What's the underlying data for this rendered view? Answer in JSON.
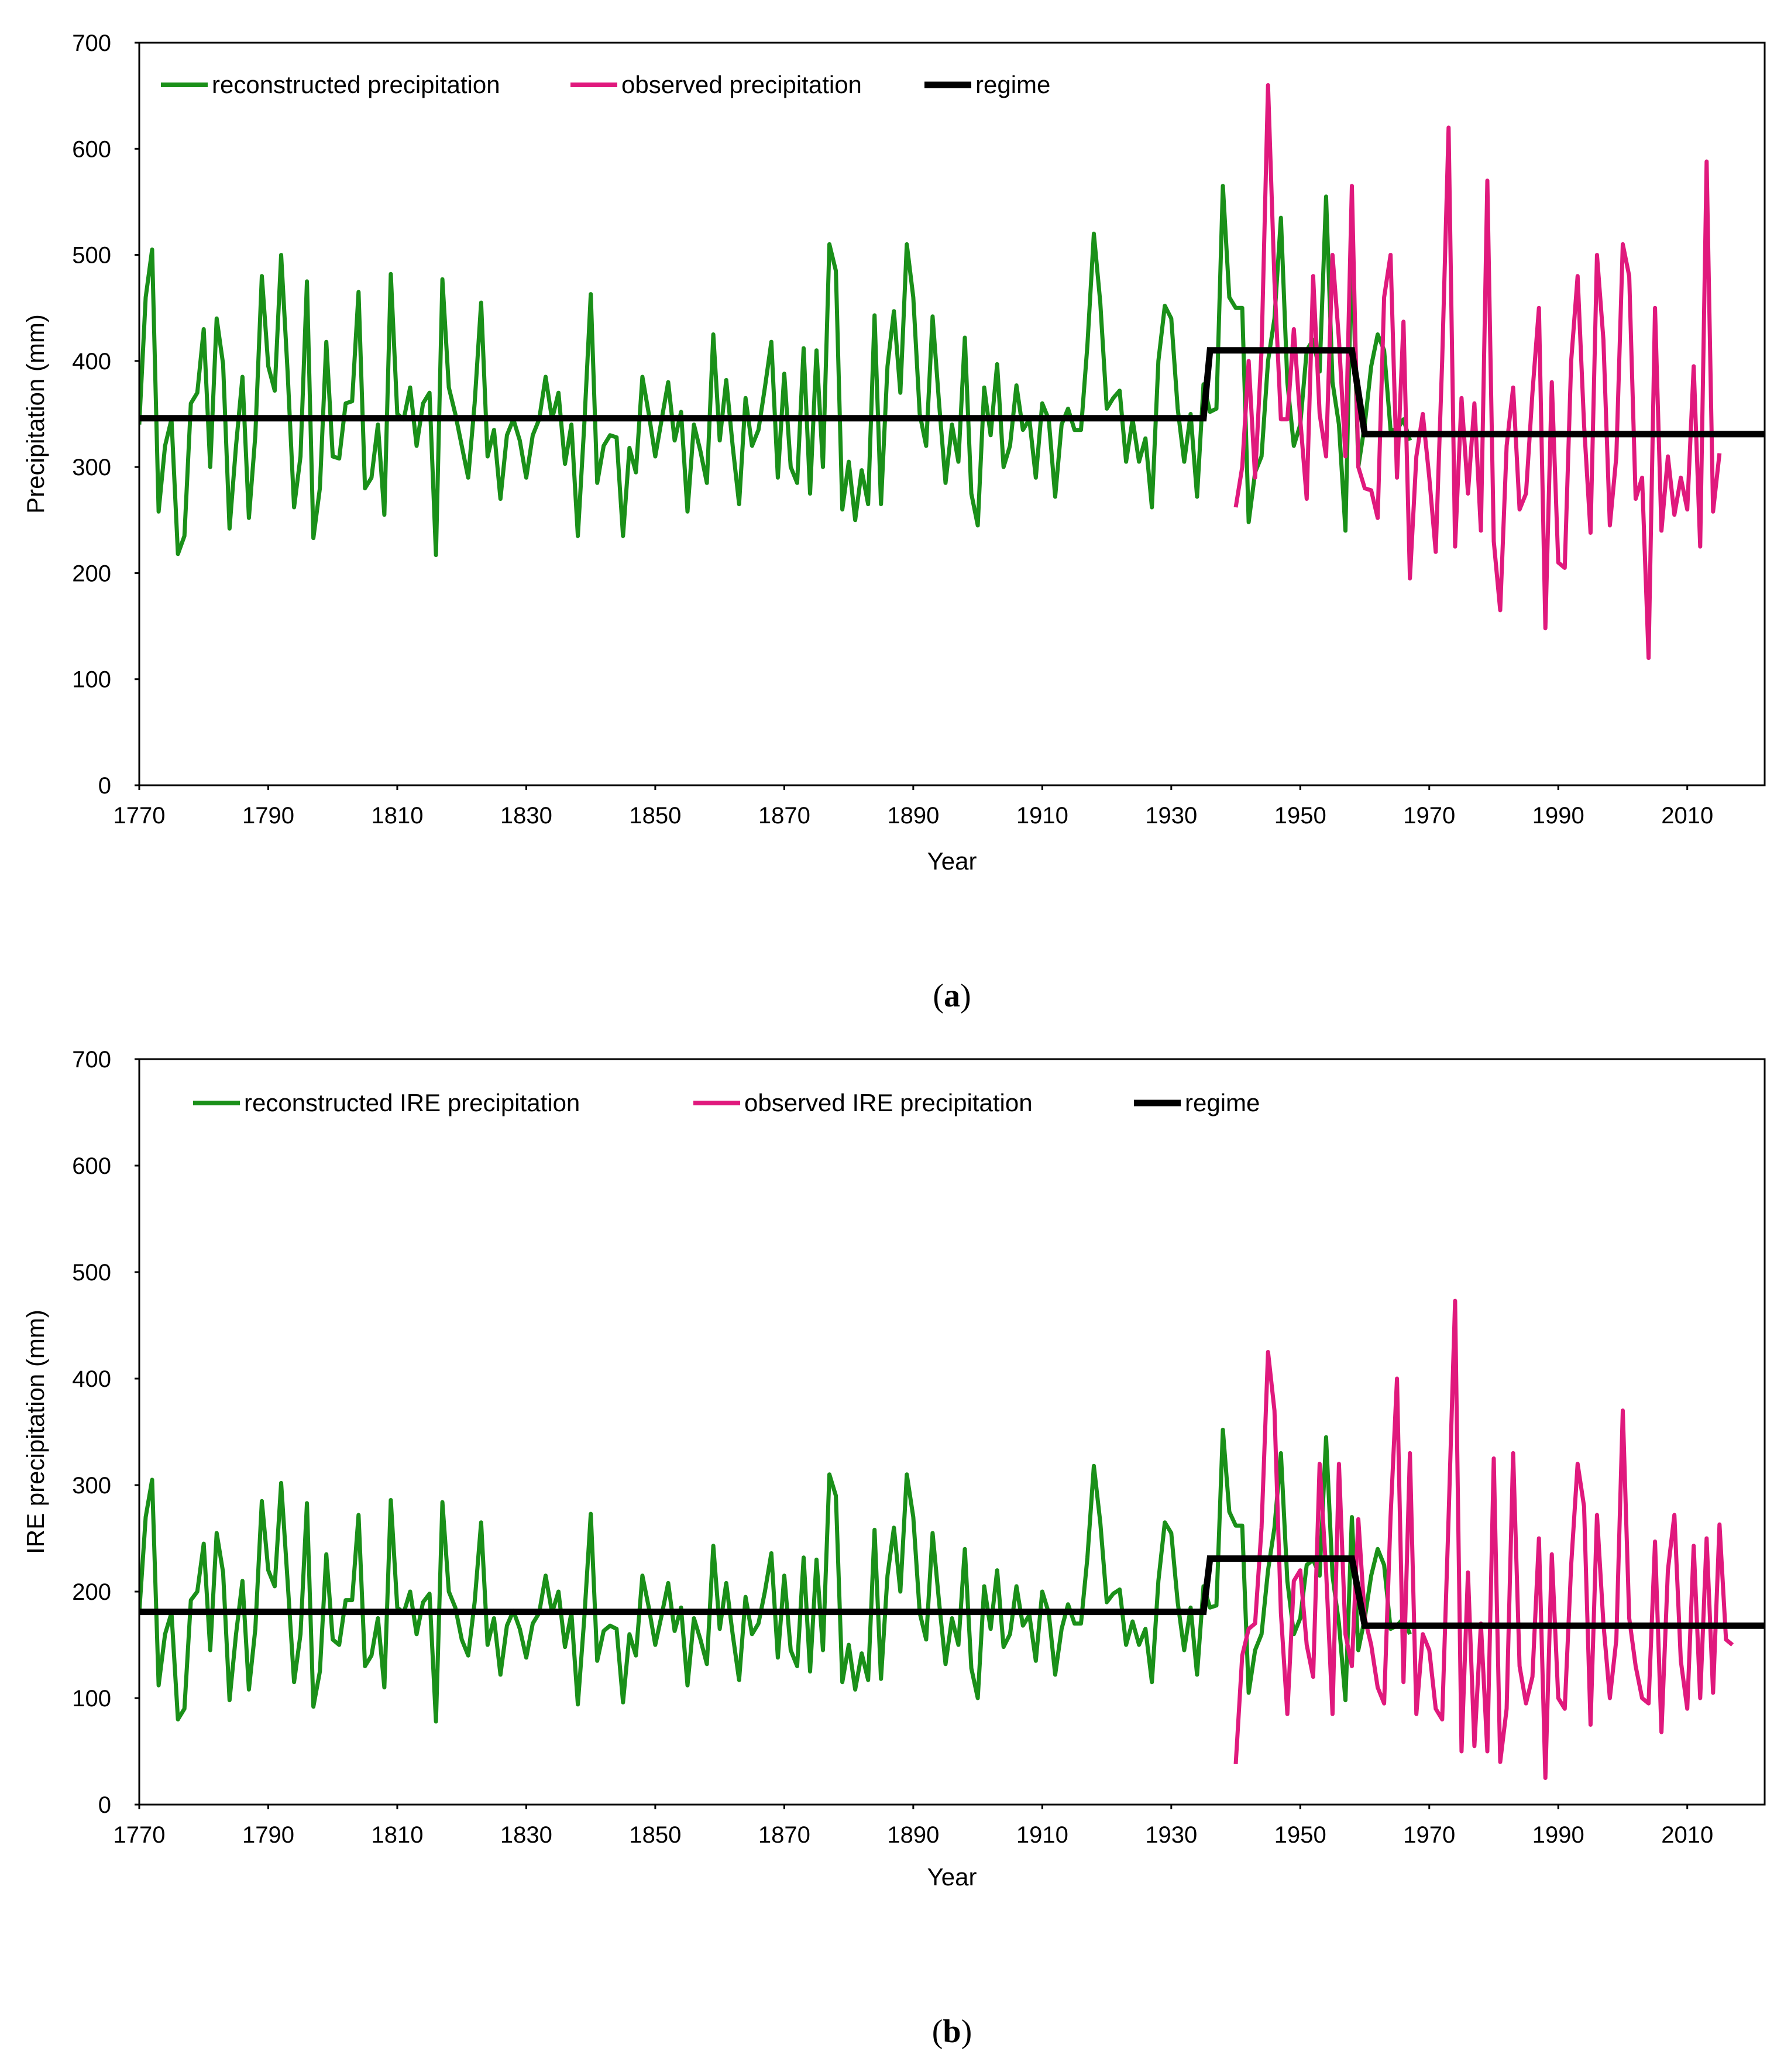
{
  "chart_data": [
    {
      "type": "line",
      "panel": "(a)",
      "caption": {
        "open": "(",
        "letter": "a",
        "close": ")"
      },
      "xlabel": "Year",
      "ylabel": "Precipitation (mm)",
      "xlim": [
        1770,
        2022
      ],
      "ylim": [
        0,
        700
      ],
      "xticks": [
        "1770",
        "1790",
        "1810",
        "1830",
        "1850",
        "1870",
        "1890",
        "1910",
        "1930",
        "1950",
        "1970",
        "1990",
        "2010"
      ],
      "yticks": [
        "0",
        "100",
        "200",
        "300",
        "400",
        "500",
        "600",
        "700"
      ],
      "legend_position": "top-left",
      "colors": {
        "reconstructed": "#1a9019",
        "observed": "#e0197d",
        "regime": "#000000"
      },
      "series": [
        {
          "name": "reconstructed precipitation",
          "color": "#1a9019",
          "x_start": 1770,
          "values": [
            340,
            460,
            505,
            258,
            320,
            345,
            218,
            235,
            360,
            370,
            430,
            300,
            440,
            397,
            242,
            320,
            385,
            252,
            330,
            480,
            395,
            372,
            500,
            390,
            262,
            310,
            475,
            233,
            280,
            418,
            310,
            308,
            360,
            362,
            465,
            280,
            290,
            340,
            255,
            482,
            350,
            345,
            375,
            320,
            360,
            370,
            217,
            477,
            375,
            350,
            320,
            290,
            360,
            455,
            310,
            335,
            270,
            330,
            345,
            325,
            290,
            330,
            345,
            385,
            345,
            370,
            303,
            340,
            235,
            340,
            463,
            285,
            320,
            330,
            328,
            235,
            318,
            295,
            385,
            350,
            310,
            345,
            380,
            325,
            352,
            258,
            340,
            315,
            285,
            425,
            325,
            382,
            320,
            265,
            365,
            320,
            335,
            375,
            418,
            290,
            388,
            300,
            285,
            412,
            275,
            410,
            300,
            510,
            485,
            260,
            305,
            250,
            297,
            265,
            443,
            265,
            395,
            447,
            370,
            510,
            460,
            350,
            320,
            442,
            360,
            285,
            340,
            305,
            422,
            275,
            245,
            375,
            330,
            397,
            300,
            320,
            377,
            335,
            345,
            290,
            360,
            345,
            272,
            340,
            355,
            335,
            335,
            415,
            520,
            455,
            355,
            365,
            372,
            305,
            345,
            305,
            327,
            262,
            400,
            452,
            440,
            355,
            305,
            350,
            272,
            378,
            352,
            355,
            565,
            460,
            450,
            450,
            248,
            295,
            310,
            400,
            440,
            535,
            380,
            320,
            340,
            410,
            420,
            390,
            555,
            380,
            340,
            240,
            515,
            300,
            340,
            395,
            425,
            410,
            335,
            335,
            345,
            325
          ]
        },
        {
          "name": "observed precipitation",
          "color": "#e0197d",
          "x_start": 1940,
          "values": [
            262,
            300,
            400,
            290,
            410,
            660,
            475,
            345,
            345,
            430,
            345,
            270,
            480,
            350,
            310,
            500,
            420,
            310,
            565,
            300,
            280,
            278,
            252,
            460,
            500,
            290,
            437,
            195,
            310,
            350,
            290,
            220,
            400,
            620,
            225,
            365,
            275,
            360,
            240,
            570,
            230,
            165,
            320,
            375,
            260,
            275,
            370,
            450,
            148,
            380,
            210,
            205,
            400,
            480,
            340,
            238,
            500,
            420,
            245,
            310,
            510,
            480,
            270,
            290,
            120,
            450,
            240,
            310,
            255,
            290,
            260,
            395,
            225,
            588,
            258,
            313
          ]
        },
        {
          "name": "regime",
          "color": "#000000",
          "steps": [
            {
              "from": 1770,
              "to": 1935,
              "value": 346
            },
            {
              "from": 1936,
              "to": 1958,
              "value": 410
            },
            {
              "from": 1960,
              "to": 2022,
              "value": 331
            }
          ]
        }
      ]
    },
    {
      "type": "line",
      "panel": "(b)",
      "caption": {
        "open": "(",
        "letter": "b",
        "close": ")"
      },
      "xlabel": "Year",
      "ylabel": "IRE precipitation (mm)",
      "xlim": [
        1770,
        2022
      ],
      "ylim": [
        0,
        700
      ],
      "xticks": [
        "1770",
        "1790",
        "1810",
        "1830",
        "1850",
        "1870",
        "1890",
        "1910",
        "1930",
        "1950",
        "1970",
        "1990",
        "2010"
      ],
      "yticks": [
        "0",
        "100",
        "200",
        "300",
        "400",
        "500",
        "600",
        "700"
      ],
      "legend_position": "top-left",
      "colors": {
        "reconstructed": "#1a9019",
        "observed": "#e0197d",
        "regime": "#000000"
      },
      "series": [
        {
          "name": "reconstructed IRE precipitation",
          "color": "#1a9019",
          "x_start": 1770,
          "values": [
            180,
            270,
            305,
            112,
            160,
            180,
            80,
            90,
            192,
            200,
            245,
            145,
            255,
            218,
            98,
            160,
            210,
            108,
            165,
            285,
            220,
            205,
            302,
            210,
            115,
            160,
            283,
            92,
            125,
            235,
            155,
            150,
            192,
            192,
            272,
            130,
            140,
            175,
            110,
            286,
            185,
            180,
            200,
            160,
            190,
            198,
            78,
            284,
            200,
            185,
            155,
            140,
            190,
            265,
            150,
            175,
            122,
            168,
            182,
            165,
            138,
            170,
            180,
            215,
            180,
            200,
            148,
            180,
            94,
            175,
            273,
            135,
            163,
            168,
            165,
            96,
            160,
            140,
            215,
            185,
            150,
            178,
            208,
            163,
            185,
            112,
            175,
            155,
            132,
            243,
            165,
            208,
            160,
            117,
            195,
            160,
            170,
            200,
            236,
            138,
            215,
            145,
            130,
            232,
            125,
            230,
            145,
            310,
            290,
            115,
            150,
            108,
            142,
            117,
            258,
            118,
            215,
            260,
            200,
            310,
            270,
            180,
            155,
            255,
            190,
            132,
            175,
            150,
            240,
            128,
            100,
            205,
            165,
            220,
            148,
            160,
            205,
            168,
            178,
            135,
            200,
            180,
            122,
            165,
            188,
            170,
            170,
            232,
            318,
            265,
            190,
            198,
            202,
            150,
            172,
            150,
            165,
            115,
            210,
            265,
            255,
            190,
            145,
            185,
            122,
            205,
            185,
            187,
            352,
            275,
            262,
            262,
            105,
            145,
            160,
            220,
            260,
            330,
            210,
            160,
            175,
            225,
            230,
            215,
            345,
            215,
            170,
            98,
            270,
            145,
            175,
            215,
            240,
            225,
            165,
            168,
            175,
            160
          ]
        },
        {
          "name": "observed IRE precipitation",
          "color": "#e0197d",
          "x_start": 1940,
          "values": [
            38,
            140,
            165,
            170,
            260,
            425,
            370,
            180,
            85,
            210,
            220,
            150,
            120,
            320,
            220,
            85,
            320,
            160,
            130,
            268,
            175,
            150,
            110,
            95,
            270,
            400,
            115,
            330,
            85,
            160,
            145,
            90,
            80,
            270,
            473,
            50,
            218,
            55,
            170,
            50,
            325,
            40,
            90,
            330,
            130,
            95,
            120,
            250,
            25,
            235,
            100,
            90,
            225,
            320,
            280,
            75,
            272,
            170,
            100,
            155,
            370,
            175,
            130,
            100,
            95,
            247,
            68,
            220,
            272,
            135,
            90,
            243,
            100,
            250,
            105,
            263,
            155,
            150
          ]
        },
        {
          "name": "regime",
          "color": "#000000",
          "steps": [
            {
              "from": 1770,
              "to": 1935,
              "value": 181
            },
            {
              "from": 1936,
              "to": 1958,
              "value": 231
            },
            {
              "from": 1960,
              "to": 2022,
              "value": 168
            }
          ]
        }
      ]
    }
  ]
}
